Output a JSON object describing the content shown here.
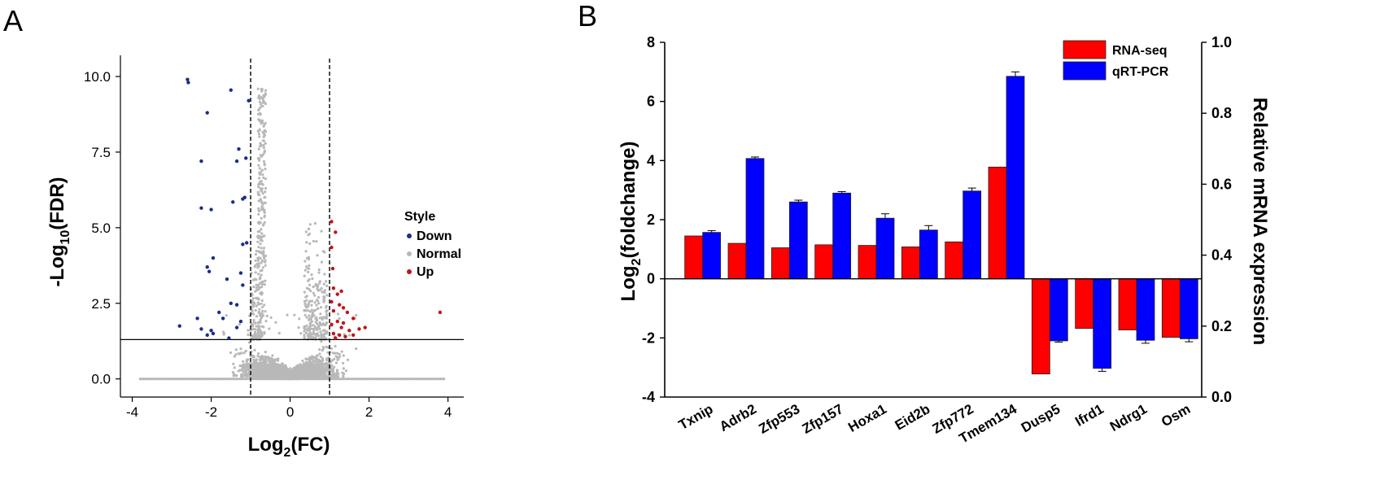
{
  "chart_data": [
    {
      "panel": "A",
      "type": "scatter",
      "xlabel": "Log2(FC)",
      "ylabel": "-Log10(FDR)",
      "xlabel_parts": {
        "base": "Log",
        "sub": "2",
        "rest": "(FC)"
      },
      "ylabel_parts": {
        "pre": "-Log",
        "sub": "10",
        "rest": "(FDR)"
      },
      "xlim": [
        -4.3,
        4.4
      ],
      "ylim": [
        -0.6,
        10.7
      ],
      "xticks": [
        -4,
        -2,
        0,
        2,
        4
      ],
      "yticks": [
        0.0,
        2.5,
        5.0,
        7.5,
        10.0
      ],
      "ytick_labels": [
        "0.0",
        "2.5",
        "5.0",
        "7.5",
        "10.0"
      ],
      "vlines": [
        -1,
        1
      ],
      "hline": 1.3,
      "grid": false,
      "legend": {
        "title": "Style",
        "placement": "right",
        "entries": [
          {
            "name": "Down",
            "color": "#1a2e8c"
          },
          {
            "name": "Normal",
            "color": "#b8b8b8"
          },
          {
            "name": "Up",
            "color": "#c0141a"
          }
        ]
      },
      "series": [
        {
          "name": "Down",
          "color": "#1a2e8c",
          "points": [
            [
              -2.6,
              9.9
            ],
            [
              -2.58,
              9.8
            ],
            [
              -1.5,
              9.55
            ],
            [
              -2.1,
              8.8
            ],
            [
              -2.25,
              7.2
            ],
            [
              -1.3,
              7.6
            ],
            [
              -1.45,
              5.85
            ],
            [
              -2.25,
              5.65
            ],
            [
              -2.0,
              5.6
            ],
            [
              -1.95,
              4.0
            ],
            [
              -1.1,
              4.5
            ],
            [
              -2.1,
              3.7
            ],
            [
              -2.05,
              3.55
            ],
            [
              -1.25,
              3.5
            ],
            [
              -1.6,
              3.3
            ],
            [
              -1.2,
              3.1
            ],
            [
              -1.7,
              2.0
            ],
            [
              -2.35,
              2.0
            ],
            [
              -1.5,
              2.5
            ],
            [
              -1.35,
              1.7
            ],
            [
              -2.0,
              1.6
            ],
            [
              -2.1,
              1.45
            ],
            [
              -2.8,
              1.75
            ],
            [
              -2.25,
              1.65
            ],
            [
              -1.95,
              1.5
            ],
            [
              -1.55,
              1.35
            ],
            [
              -1.8,
              2.2
            ],
            [
              -1.25,
              1.9
            ],
            [
              -1.15,
              6.0
            ],
            [
              -1.2,
              5.95
            ],
            [
              -1.35,
              7.2
            ],
            [
              -1.12,
              7.3
            ],
            [
              -1.2,
              4.45
            ],
            [
              -1.35,
              2.45
            ],
            [
              -1.05,
              9.2
            ]
          ]
        },
        {
          "name": "Up",
          "color": "#c0141a",
          "points": [
            [
              1.05,
              5.2
            ],
            [
              1.15,
              4.85
            ],
            [
              1.05,
              4.35
            ],
            [
              1.08,
              3.65
            ],
            [
              1.1,
              3.0
            ],
            [
              1.3,
              2.9
            ],
            [
              1.2,
              2.8
            ],
            [
              1.05,
              2.55
            ],
            [
              1.25,
              2.45
            ],
            [
              1.35,
              2.35
            ],
            [
              1.1,
              2.25
            ],
            [
              1.45,
              2.2
            ],
            [
              1.6,
              2.0
            ],
            [
              1.2,
              1.9
            ],
            [
              1.35,
              1.85
            ],
            [
              1.75,
              1.65
            ],
            [
              1.9,
              1.7
            ],
            [
              1.5,
              1.6
            ],
            [
              1.1,
              1.5
            ],
            [
              1.25,
              1.45
            ],
            [
              1.4,
              1.4
            ],
            [
              1.6,
              1.45
            ],
            [
              1.15,
              1.35
            ],
            [
              1.3,
              1.7
            ],
            [
              1.05,
              1.8
            ],
            [
              3.8,
              2.2
            ]
          ]
        },
        {
          "name": "Normal",
          "color": "#b8b8b8",
          "generated": "dense cloud of non-significant genes centred near x=0, spanning approximately x from -3.8 to 3.9 with most points at FDR values below 1.3; a narrow column rises near x=-0.7 to about y=9.5"
        }
      ]
    },
    {
      "panel": "B",
      "type": "bar",
      "ylabel": "Log2(foldchange)",
      "ylabel_parts": {
        "base": "Log",
        "sub": "2",
        "rest": "(foldchange)"
      },
      "y2label": "Relative mRNA expression",
      "ylim": [
        -4,
        8
      ],
      "yticks": [
        -4,
        -2,
        0,
        2,
        4,
        6,
        8
      ],
      "y2lim": [
        0.0,
        1.0
      ],
      "y2ticks": [
        "0.0",
        "0.2",
        "0.4",
        "0.6",
        "0.8",
        "1.0"
      ],
      "grid": false,
      "legend": {
        "placement": "top-right",
        "entries": [
          {
            "name": "RNA-seq",
            "color": "#ff0000"
          },
          {
            "name": "qRT-PCR",
            "color": "#0000ff"
          }
        ]
      },
      "categories": [
        "Txnip",
        "Adrb2",
        "Zfp553",
        "Zfp157",
        "Hoxa1",
        "Eid2b",
        "Zfp772",
        "Tmem134",
        "Dusp5",
        "Ifrd1",
        "Ndrg1",
        "Osm"
      ],
      "series": [
        {
          "name": "RNA-seq",
          "color": "#ff0000",
          "values": [
            1.45,
            1.2,
            1.05,
            1.15,
            1.13,
            1.08,
            1.25,
            3.78,
            -3.22,
            -1.68,
            -1.73,
            -1.98
          ],
          "errors": [
            0,
            0,
            0,
            0,
            0,
            0,
            0,
            0,
            0,
            0,
            0,
            0
          ]
        },
        {
          "name": "qRT-PCR",
          "color": "#0000ff",
          "values": [
            1.57,
            4.07,
            2.6,
            2.9,
            2.05,
            1.65,
            2.97,
            6.85,
            -2.1,
            -3.03,
            -2.08,
            -2.03
          ],
          "errors": [
            0.06,
            0.05,
            0.06,
            0.05,
            0.15,
            0.15,
            0.1,
            0.15,
            0.04,
            0.1,
            0.1,
            0.1
          ]
        }
      ]
    }
  ]
}
